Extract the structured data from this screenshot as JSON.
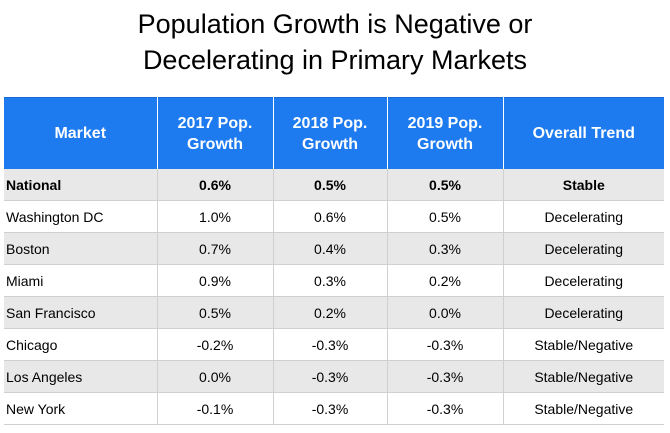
{
  "title_line1": "Population Growth is Negative or",
  "title_line2": "Decelerating in Primary Markets",
  "chart_data": {
    "type": "table",
    "title": "Population Growth is Negative or Decelerating in Primary Markets",
    "header_color": "#1e7bef",
    "columns": [
      "Market",
      "2017 Pop. Growth",
      "2018 Pop. Growth",
      "2019 Pop. Growth",
      "Overall Trend"
    ],
    "header_lines": [
      [
        "Market"
      ],
      [
        "2017 Pop.",
        "Growth"
      ],
      [
        "2018 Pop.",
        "Growth"
      ],
      [
        "2019 Pop.",
        "Growth"
      ],
      [
        "Overall Trend"
      ]
    ],
    "rows": [
      {
        "market": "National",
        "y2017": "0.6%",
        "y2018": "0.5%",
        "y2019": "0.5%",
        "trend": "Stable"
      },
      {
        "market": "Washington DC",
        "y2017": "1.0%",
        "y2018": "0.6%",
        "y2019": "0.5%",
        "trend": "Decelerating"
      },
      {
        "market": "Boston",
        "y2017": "0.7%",
        "y2018": "0.4%",
        "y2019": "0.3%",
        "trend": "Decelerating"
      },
      {
        "market": "Miami",
        "y2017": "0.9%",
        "y2018": "0.3%",
        "y2019": "0.2%",
        "trend": "Decelerating"
      },
      {
        "market": "San Francisco",
        "y2017": "0.5%",
        "y2018": "0.2%",
        "y2019": "0.0%",
        "trend": "Decelerating"
      },
      {
        "market": "Chicago",
        "y2017": "-0.2%",
        "y2018": "-0.3%",
        "y2019": "-0.3%",
        "trend": "Stable/Negative"
      },
      {
        "market": "Los Angeles",
        "y2017": "0.0%",
        "y2018": "-0.3%",
        "y2019": "-0.3%",
        "trend": "Stable/Negative"
      },
      {
        "market": "New York",
        "y2017": "-0.1%",
        "y2018": "-0.3%",
        "y2019": "-0.3%",
        "trend": "Stable/Negative"
      }
    ]
  }
}
